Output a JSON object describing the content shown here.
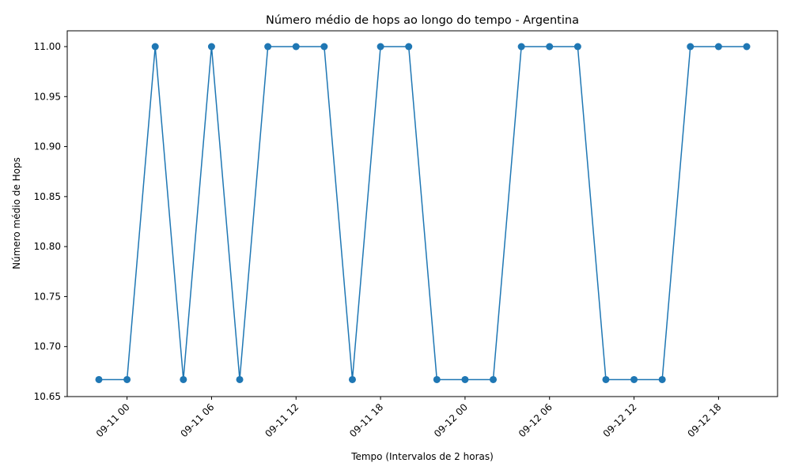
{
  "chart_data": {
    "type": "line",
    "title": "Número médio de hops ao longo do tempo - Argentina",
    "xlabel": "Tempo (Intervalos de 2 horas)",
    "ylabel": "Número médio de Hops",
    "ylim": [
      10.65,
      11.0
    ],
    "y_ticks": [
      "10.65",
      "10.70",
      "10.75",
      "10.80",
      "10.85",
      "10.90",
      "10.95",
      "11.00"
    ],
    "x_ticks": [
      "09-11 00",
      "09-11 06",
      "09-11 12",
      "09-11 18",
      "09-12 00",
      "09-12 06",
      "09-12 12",
      "09-12 18"
    ],
    "grid": false,
    "marker": "circle",
    "color": "#1f77b4",
    "series": [
      {
        "x": [
          "09-10 22",
          "09-11 00",
          "09-11 02",
          "09-11 04",
          "09-11 06",
          "09-11 08",
          "09-11 10",
          "09-11 12",
          "09-11 14",
          "09-11 16",
          "09-11 18",
          "09-11 20",
          "09-11 22",
          "09-12 00",
          "09-12 02",
          "09-12 04",
          "09-12 06",
          "09-12 08",
          "09-12 10",
          "09-12 12",
          "09-12 14",
          "09-12 16",
          "09-12 18",
          "09-12 20"
        ],
        "values": [
          10.667,
          10.667,
          11.0,
          10.667,
          11.0,
          10.667,
          11.0,
          11.0,
          11.0,
          10.667,
          11.0,
          11.0,
          10.667,
          10.667,
          10.667,
          11.0,
          11.0,
          11.0,
          10.667,
          10.667,
          10.667,
          11.0,
          11.0,
          11.0
        ]
      }
    ]
  }
}
